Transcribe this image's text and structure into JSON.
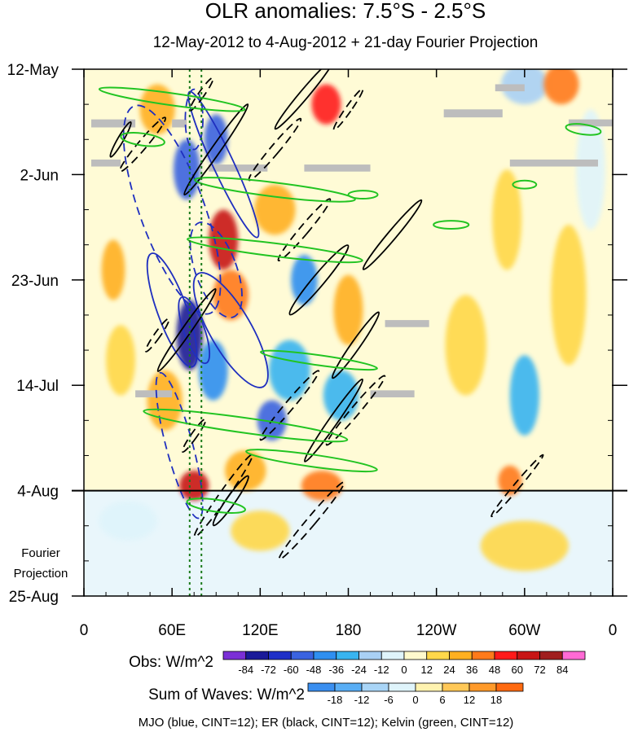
{
  "chart_data": {
    "type": "heatmap",
    "title": "OLR anomalies: 7.5°S - 2.5°S",
    "subtitle": "12-May-2012 to 4-Aug-2012 + 21-day Fourier Projection",
    "x_ticks": [
      "0",
      "60E",
      "120E",
      "180",
      "120W",
      "60W",
      "0"
    ],
    "x_tick_values": [
      0,
      60,
      120,
      180,
      240,
      300,
      360
    ],
    "y_ticks": [
      "12-May",
      "2-Jun",
      "23-Jun",
      "14-Jul",
      "4-Aug",
      "25-Aug"
    ],
    "y_tick_days": [
      0,
      21,
      42,
      63,
      84,
      105
    ],
    "xlim": [
      0,
      360
    ],
    "ylim_days": [
      0,
      105
    ],
    "observation_end_day": 84,
    "fourier_projection_label": [
      "Fourier",
      "Projection"
    ],
    "dotted_longitudes": [
      72,
      80
    ],
    "obs_colorbar": {
      "title": "Obs: W/m^2",
      "levels": [
        -84,
        -72,
        -60,
        -48,
        -36,
        -24,
        -12,
        0,
        12,
        24,
        36,
        48,
        60,
        72,
        84
      ],
      "colors": [
        "#7b2fd6",
        "#1a1a99",
        "#1f30c8",
        "#3a63e0",
        "#2f8ff0",
        "#38b4f0",
        "#a9d0f5",
        "#dff4fb",
        "#fffacd",
        "#ffd84a",
        "#ffb020",
        "#ff7a1a",
        "#ff1a1a",
        "#c81515",
        "#a01e1e",
        "#ff6ad5"
      ]
    },
    "waves_colorbar": {
      "title": "Sum of Waves: W/m^2",
      "levels": [
        -18,
        -12,
        -6,
        0,
        6,
        12,
        18
      ],
      "colors": [
        "#3a8ff0",
        "#59aef5",
        "#a9d5f7",
        "#dff4fb",
        "#fff3b0",
        "#ffc857",
        "#ff9a2a",
        "#ff6a10"
      ]
    },
    "caption": "MJO (blue, CINT=12); ER (black, CINT=12); Kelvin (green, CINT=12)",
    "anomaly_blobs": [
      {
        "lon": 70,
        "day": 20,
        "rx": 9,
        "ry": 6,
        "v": -60
      },
      {
        "lon": 72,
        "day": 53,
        "rx": 9,
        "ry": 7,
        "v": -84
      },
      {
        "lon": 90,
        "day": 14,
        "rx": 8,
        "ry": 5,
        "v": -60
      },
      {
        "lon": 95,
        "day": 34,
        "rx": 10,
        "ry": 6,
        "v": 60
      },
      {
        "lon": 88,
        "day": 60,
        "rx": 10,
        "ry": 6,
        "v": -48
      },
      {
        "lon": 100,
        "day": 45,
        "rx": 12,
        "ry": 5,
        "v": 36
      },
      {
        "lon": 50,
        "day": 8,
        "rx": 12,
        "ry": 5,
        "v": 24
      },
      {
        "lon": 55,
        "day": 66,
        "rx": 12,
        "ry": 6,
        "v": 24
      },
      {
        "lon": 130,
        "day": 28,
        "rx": 14,
        "ry": 5,
        "v": 24
      },
      {
        "lon": 140,
        "day": 60,
        "rx": 14,
        "ry": 6,
        "v": -36
      },
      {
        "lon": 165,
        "day": 7,
        "rx": 10,
        "ry": 4,
        "v": 48
      },
      {
        "lon": 150,
        "day": 42,
        "rx": 9,
        "ry": 5,
        "v": -48
      },
      {
        "lon": 162,
        "day": 83,
        "rx": 14,
        "ry": 3,
        "v": 36
      },
      {
        "lon": 180,
        "day": 48,
        "rx": 10,
        "ry": 7,
        "v": 24
      },
      {
        "lon": 128,
        "day": 70,
        "rx": 10,
        "ry": 4,
        "v": -60
      },
      {
        "lon": 175,
        "day": 65,
        "rx": 12,
        "ry": 5,
        "v": -36
      },
      {
        "lon": 75,
        "day": 83,
        "rx": 10,
        "ry": 3,
        "v": 60
      },
      {
        "lon": 110,
        "day": 80,
        "rx": 14,
        "ry": 4,
        "v": 24
      },
      {
        "lon": 20,
        "day": 40,
        "rx": 8,
        "ry": 6,
        "v": 24
      },
      {
        "lon": 25,
        "day": 58,
        "rx": 10,
        "ry": 7,
        "v": 12
      },
      {
        "lon": 300,
        "day": 3,
        "rx": 16,
        "ry": 4,
        "v": -24
      },
      {
        "lon": 325,
        "day": 3,
        "rx": 12,
        "ry": 4,
        "v": 36
      },
      {
        "lon": 300,
        "day": 65,
        "rx": 10,
        "ry": 8,
        "v": -36
      },
      {
        "lon": 288,
        "day": 30,
        "rx": 10,
        "ry": 10,
        "v": 12
      },
      {
        "lon": 290,
        "day": 82,
        "rx": 8,
        "ry": 3,
        "v": 36
      },
      {
        "lon": 330,
        "day": 45,
        "rx": 12,
        "ry": 14,
        "v": 12
      },
      {
        "lon": 260,
        "day": 55,
        "rx": 14,
        "ry": 10,
        "v": 12
      },
      {
        "lon": 345,
        "day": 20,
        "rx": 10,
        "ry": 12,
        "v": -12
      },
      {
        "lon": 120,
        "day": 92,
        "rx": 20,
        "ry": 4,
        "v": 12
      },
      {
        "lon": 300,
        "day": 95,
        "rx": 30,
        "ry": 5,
        "v": 12
      },
      {
        "lon": 30,
        "day": 90,
        "rx": 20,
        "ry": 4,
        "v": -12
      }
    ],
    "mjo_contours": [
      {
        "lon": 60,
        "day": 48,
        "rx": 10,
        "ry": 12,
        "rot": -20,
        "dash": false
      },
      {
        "lon": 95,
        "day": 19,
        "rx": 7,
        "ry": 16,
        "rot": -25,
        "dash": false
      },
      {
        "lon": 75,
        "day": 52,
        "rx": 7,
        "ry": 7,
        "rot": -20,
        "dash": false
      },
      {
        "lon": 100,
        "day": 52,
        "rx": 14,
        "ry": 13,
        "rot": -30,
        "dash": false
      },
      {
        "lon": 60,
        "day": 28,
        "rx": 22,
        "ry": 22,
        "rot": -20,
        "dash": true
      },
      {
        "lon": 90,
        "day": 40,
        "rx": 14,
        "ry": 10,
        "rot": -20,
        "dash": true
      },
      {
        "lon": 65,
        "day": 75,
        "rx": 9,
        "ry": 15,
        "rot": -15,
        "dash": true
      },
      {
        "lon": 75,
        "day": 10,
        "rx": 6,
        "ry": 6,
        "rot": 0,
        "dash": true
      }
    ],
    "er_contours": [
      {
        "lon": 150,
        "day": 5,
        "rx": 3,
        "ry": 9,
        "rot": 40,
        "dash": false
      },
      {
        "lon": 90,
        "day": 16,
        "rx": 3,
        "ry": 11,
        "rot": 35,
        "dash": false
      },
      {
        "lon": 160,
        "day": 42,
        "rx": 4,
        "ry": 9,
        "rot": 40,
        "dash": false
      },
      {
        "lon": 210,
        "day": 33,
        "rx": 3,
        "ry": 9,
        "rot": 40,
        "dash": false
      },
      {
        "lon": 185,
        "day": 55,
        "rx": 3,
        "ry": 8,
        "rot": 35,
        "dash": false
      },
      {
        "lon": 170,
        "day": 70,
        "rx": 3,
        "ry": 10,
        "rot": 35,
        "dash": false
      },
      {
        "lon": 70,
        "day": 52,
        "rx": 3,
        "ry": 10,
        "rot": 35,
        "dash": false
      },
      {
        "lon": 100,
        "day": 86,
        "rx": 3,
        "ry": 6,
        "rot": 35,
        "dash": false
      },
      {
        "lon": 25,
        "day": 14,
        "rx": 2,
        "ry": 4,
        "rot": 30,
        "dash": false
      },
      {
        "lon": 40,
        "day": 15,
        "rx": 3,
        "ry": 7,
        "rot": 40,
        "dash": true
      },
      {
        "lon": 130,
        "day": 16,
        "rx": 3,
        "ry": 8,
        "rot": 40,
        "dash": true
      },
      {
        "lon": 180,
        "day": 8,
        "rx": 2,
        "ry": 5,
        "rot": 35,
        "dash": true
      },
      {
        "lon": 150,
        "day": 32,
        "rx": 3,
        "ry": 8,
        "rot": 40,
        "dash": true
      },
      {
        "lon": 140,
        "day": 67,
        "rx": 3,
        "ry": 9,
        "rot": 40,
        "dash": true
      },
      {
        "lon": 185,
        "day": 68,
        "rx": 3,
        "ry": 9,
        "rot": 40,
        "dash": true
      },
      {
        "lon": 75,
        "day": 73,
        "rx": 2,
        "ry": 4,
        "rot": 35,
        "dash": true
      },
      {
        "lon": 50,
        "day": 53,
        "rx": 2,
        "ry": 4,
        "rot": 35,
        "dash": true
      },
      {
        "lon": 95,
        "day": 85,
        "rx": 3,
        "ry": 10,
        "rot": 35,
        "dash": true
      },
      {
        "lon": 155,
        "day": 90,
        "rx": 3,
        "ry": 10,
        "rot": 40,
        "dash": true
      },
      {
        "lon": 295,
        "day": 83,
        "rx": 2,
        "ry": 8,
        "rot": 40,
        "dash": true
      },
      {
        "lon": 80,
        "day": 5,
        "rx": 2,
        "ry": 4,
        "rot": 35,
        "dash": true
      }
    ],
    "kelvin_contours": [
      {
        "lon": 60,
        "day": 6,
        "rx": 50,
        "ry": 1.2,
        "rot": 8
      },
      {
        "lon": 130,
        "day": 24,
        "rx": 55,
        "ry": 1.4,
        "rot": 7
      },
      {
        "lon": 130,
        "day": 36,
        "rx": 60,
        "ry": 1.3,
        "rot": 7
      },
      {
        "lon": 110,
        "day": 71,
        "rx": 70,
        "ry": 1.5,
        "rot": 8
      },
      {
        "lon": 160,
        "day": 58,
        "rx": 40,
        "ry": 1.0,
        "rot": 8
      },
      {
        "lon": 40,
        "day": 14,
        "rx": 15,
        "ry": 1.2,
        "rot": 8
      },
      {
        "lon": 155,
        "day": 78,
        "rx": 45,
        "ry": 1.2,
        "rot": 8
      },
      {
        "lon": 340,
        "day": 12,
        "rx": 12,
        "ry": 1.0,
        "rot": 8
      },
      {
        "lon": 90,
        "day": 87,
        "rx": 20,
        "ry": 1.2,
        "rot": 8
      },
      {
        "lon": 190,
        "day": 25,
        "rx": 10,
        "ry": 0.8,
        "rot": 0
      },
      {
        "lon": 250,
        "day": 31,
        "rx": 12,
        "ry": 0.8,
        "rot": 0
      },
      {
        "lon": 300,
        "day": 23,
        "rx": 8,
        "ry": 0.8,
        "rot": 0
      }
    ],
    "missing_data": [
      {
        "lon": 5,
        "day": 10,
        "w": 30,
        "h": 1.6
      },
      {
        "lon": 60,
        "day": 10,
        "w": 10,
        "h": 1.6
      },
      {
        "lon": 85,
        "day": 19,
        "w": 40,
        "h": 1.4
      },
      {
        "lon": 150,
        "day": 19,
        "w": 45,
        "h": 1.4
      },
      {
        "lon": 245,
        "day": 8,
        "w": 40,
        "h": 1.6
      },
      {
        "lon": 280,
        "day": 3,
        "w": 20,
        "h": 1.4
      },
      {
        "lon": 330,
        "day": 10,
        "w": 30,
        "h": 1.4
      },
      {
        "lon": 290,
        "day": 18,
        "w": 60,
        "h": 1.4
      },
      {
        "lon": 5,
        "day": 18,
        "w": 20,
        "h": 1.4
      },
      {
        "lon": 205,
        "day": 50,
        "w": 30,
        "h": 1.4
      },
      {
        "lon": 195,
        "day": 64,
        "w": 30,
        "h": 1.4
      },
      {
        "lon": 35,
        "day": 64,
        "w": 25,
        "h": 1.4
      }
    ]
  }
}
